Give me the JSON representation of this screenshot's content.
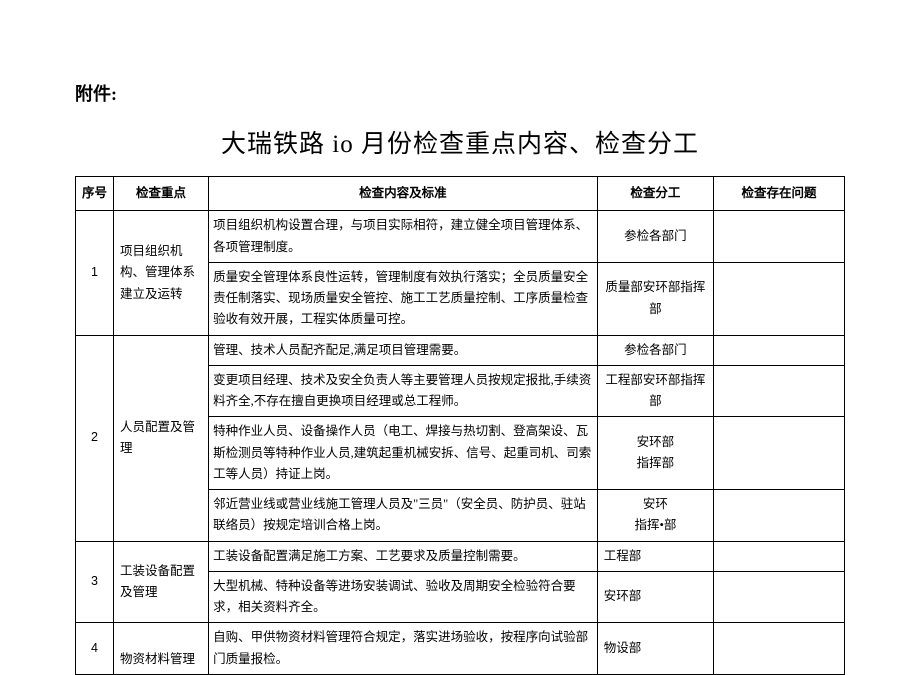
{
  "attachment_label": "附件:",
  "title": "大瑞铁路 io 月份检查重点内容、检查分工",
  "headers": {
    "seq": "序号",
    "focus": "检查重点",
    "content": "检查内容及标准",
    "div": "检查分工",
    "issue": "检查存在问题"
  },
  "rows": [
    {
      "seq": "1",
      "focus": "项目组织机构、管理体系建立及运转",
      "items": [
        {
          "content": "项目组织机构设置合理，与项目实际相符，建立健全项目管理体系、各项管理制度。",
          "div": "参检各部门"
        },
        {
          "content": "质量安全管理体系良性运转，管理制度有效执行落实；全员质量安全责任制落实、现场质量安全管控、施工工艺质量控制、工序质量检查验收有效开展，工程实体质量可控。",
          "div": "质量部安环部指挥部"
        }
      ]
    },
    {
      "seq": "2",
      "focus": "人员配置及管理",
      "items": [
        {
          "content": "管理、技术人员配齐配足,满足项目管理需要。",
          "div": "参检各部门"
        },
        {
          "content": "变更项目经理、技术及安全负责人等主要管理人员按规定报批,手续资料齐全,不存在擅自更换项目经理或总工程师。",
          "div": "工程部安环部指挥部"
        },
        {
          "content": "特种作业人员、设备操作人员（电工、焊接与热切割、登高架设、瓦斯检测员等特种作业人员,建筑起重机械安拆、信号、起重司机、司索工等人员）持证上岗。",
          "div": "安环部\n指挥部"
        },
        {
          "content": "邻近营业线或营业线施工管理人员及\"三员\"（安全员、防护员、驻站联络员）按规定培训合格上岗。",
          "div": "安环\n指挥•部"
        }
      ]
    },
    {
      "seq": "3",
      "focus": "工装设备配置及管理",
      "items": [
        {
          "content": "工装设备配置满足施工方案、工艺要求及质量控制需要。",
          "div": "工程部",
          "div_align": "left"
        },
        {
          "content": "大型机械、特种设备等进场安装调试、验收及周期安全检验符合要求，相关资料齐全。",
          "div": "安环部",
          "div_align": "left"
        }
      ]
    },
    {
      "seq": "4",
      "focus": "物资材料管理",
      "focus_valign": "bottom",
      "items": [
        {
          "content": "自购、甲供物资材料管理符合规定，落实进场验收，按程序向试验部门质量报检。",
          "div": "物设部",
          "div_align": "left"
        }
      ]
    }
  ]
}
